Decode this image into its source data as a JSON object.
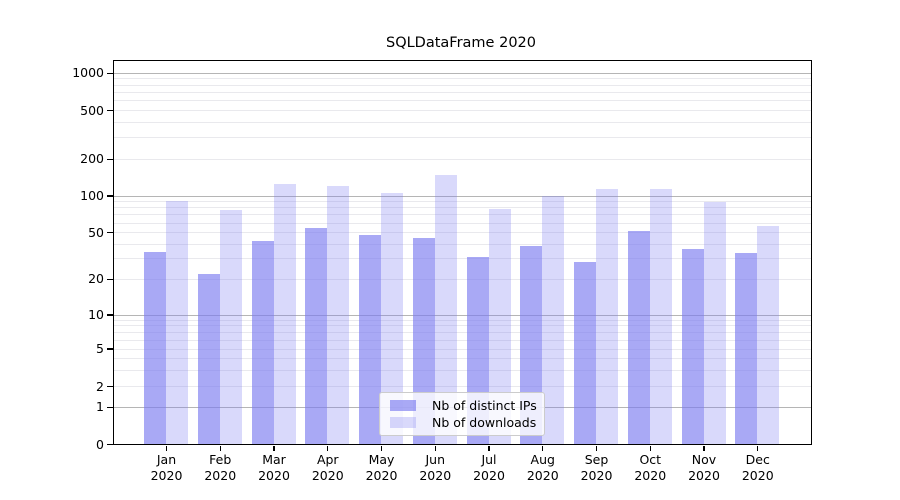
{
  "chart_data": {
    "type": "bar",
    "title": "SQLDataFrame 2020",
    "categories": [
      "Jan",
      "Feb",
      "Mar",
      "Apr",
      "May",
      "Jun",
      "Jul",
      "Aug",
      "Sep",
      "Oct",
      "Nov",
      "Dec"
    ],
    "year_label": "2020",
    "series": [
      {
        "name": "Nb of distinct IPs",
        "color": "#7b7bf0",
        "alpha": 0.65,
        "values": [
          34,
          22,
          42,
          54,
          47,
          45,
          31,
          38,
          28,
          51,
          36,
          33
        ]
      },
      {
        "name": "Nb of downloads",
        "color": "#7b7bf0",
        "alpha": 0.29,
        "values": [
          90,
          76,
          124,
          119,
          105,
          146,
          77,
          100,
          113,
          114,
          89,
          56
        ]
      }
    ],
    "xlabel": "",
    "ylabel": "",
    "yscale": "symlog",
    "ylim": [
      0,
      1260
    ],
    "yticks": [
      0,
      1,
      2,
      5,
      10,
      20,
      50,
      100,
      200,
      500,
      1000
    ],
    "y_major_gridlines": [
      1,
      10,
      100,
      1000
    ],
    "y_minor_gridlines": [
      2,
      3,
      4,
      5,
      6,
      7,
      8,
      9,
      20,
      30,
      40,
      50,
      60,
      70,
      80,
      90,
      200,
      300,
      400,
      500,
      600,
      700,
      800,
      900
    ],
    "grid": true,
    "legend_position": "lower center",
    "style": {
      "background": "#ffffff",
      "major_grid_color": "#b5b5b5",
      "minor_grid_color": "#e9e9ed",
      "spine_color": "#000000",
      "text_color": "#000000"
    }
  }
}
